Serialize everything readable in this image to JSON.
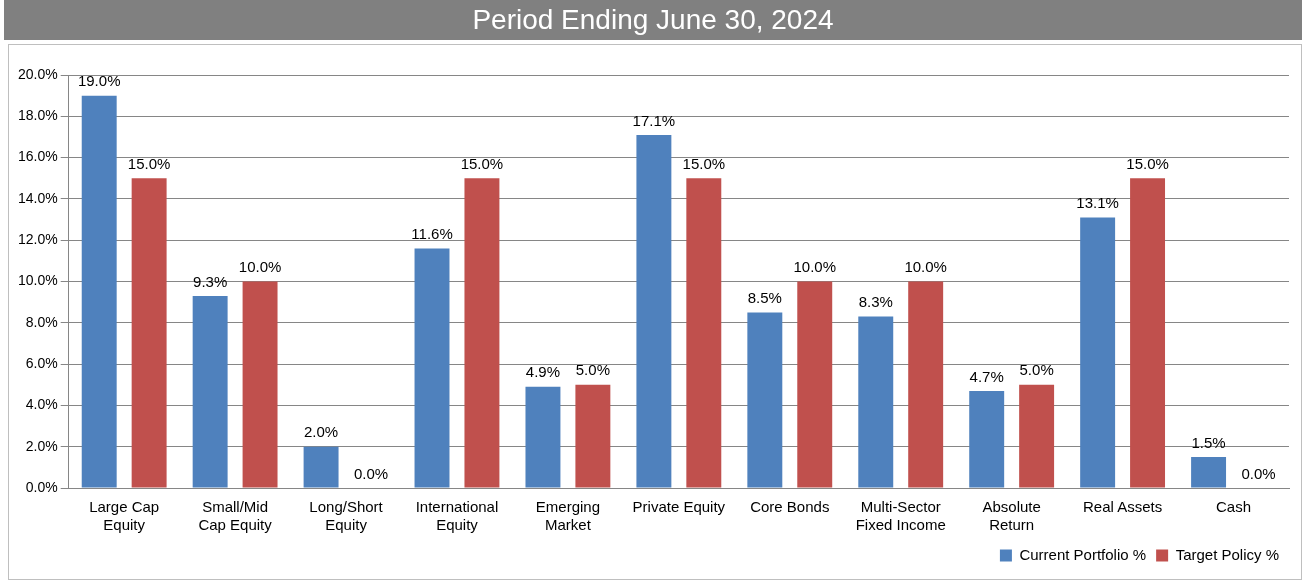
{
  "chart_data": {
    "type": "bar",
    "title": "Period Ending June 30, 2024",
    "categories": [
      "Large Cap Equity",
      "Small/Mid Cap Equity",
      "Long/Short Equity",
      "International Equity",
      "Emerging Market",
      "Private Equity",
      "Core Bonds",
      "Multi-Sector Fixed Income",
      "Absolute Return",
      "Real Assets",
      "Cash"
    ],
    "series": [
      {
        "name": "Current Portfolio %",
        "color": "#4f81bd",
        "values": [
          19.0,
          9.3,
          2.0,
          11.6,
          4.9,
          17.1,
          8.5,
          8.3,
          4.7,
          13.1,
          1.5
        ]
      },
      {
        "name": "Target Policy %",
        "color": "#c0504d",
        "values": [
          15.0,
          10.0,
          0.0,
          15.0,
          5.0,
          15.0,
          10.0,
          10.0,
          5.0,
          15.0,
          0.0
        ]
      }
    ],
    "ylim": [
      0,
      20
    ],
    "yticks": [
      {
        "value": 0,
        "label": "0.0%"
      },
      {
        "value": 2,
        "label": "2.0%"
      },
      {
        "value": 4,
        "label": "4.0%"
      },
      {
        "value": 6,
        "label": "6.0%"
      },
      {
        "value": 8,
        "label": "8.0%"
      },
      {
        "value": 10,
        "label": "10.0%"
      },
      {
        "value": 12,
        "label": "12.0%"
      },
      {
        "value": 14,
        "label": "14.0%"
      },
      {
        "value": 16,
        "label": "16.0%"
      },
      {
        "value": 18,
        "label": "18.0%"
      },
      {
        "value": 20,
        "label": "20.0%"
      }
    ],
    "value_labels": [
      [
        "19.0%",
        "9.3%",
        "2.0%",
        "11.6%",
        "4.9%",
        "17.1%",
        "8.5%",
        "8.3%",
        "4.7%",
        "13.1%",
        "1.5%"
      ],
      [
        "15.0%",
        "10.0%",
        "0.0%",
        "15.0%",
        "5.0%",
        "15.0%",
        "10.0%",
        "10.0%",
        "5.0%",
        "15.0%",
        "0.0%"
      ]
    ],
    "grid": "y",
    "legend": "bottom right"
  }
}
